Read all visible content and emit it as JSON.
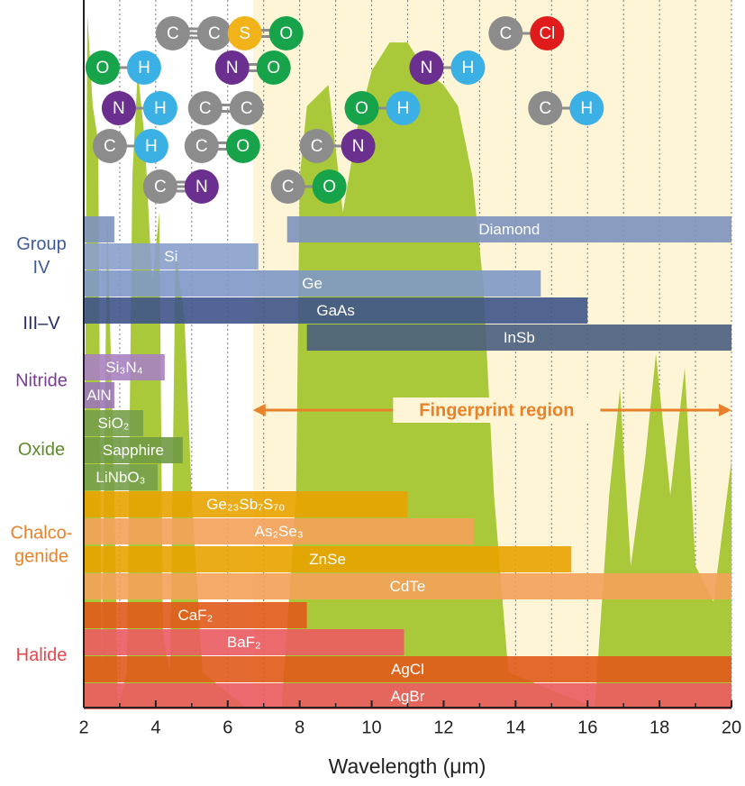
{
  "chart_data": {
    "type": "range",
    "xlabel": "Wavelength (μm)",
    "xlim": [
      2,
      20
    ],
    "xticks": [
      2,
      4,
      6,
      8,
      10,
      12,
      14,
      16,
      18,
      20
    ],
    "xminorticks": [
      3,
      5,
      7,
      9,
      11,
      13,
      15,
      17,
      19
    ],
    "ylim": [
      0,
      1
    ],
    "grid": true,
    "annotation": {
      "text": "Fingerprint region",
      "range": [
        6.7,
        20
      ],
      "color": "#e8822a",
      "background": "#fdf5d6"
    },
    "transmission": {
      "color": "#a9c93a",
      "x": [
        2.0,
        2.1,
        2.25,
        2.4,
        2.5,
        2.65,
        2.85,
        2.95,
        3.2,
        3.35,
        3.5,
        3.7,
        3.9,
        4.1,
        4.2,
        4.4,
        4.55,
        4.8,
        5.0,
        5.3,
        6.5,
        7.5,
        7.9,
        8.0,
        8.2,
        8.8,
        9.2,
        9.6,
        10.0,
        10.5,
        11.0,
        11.5,
        12.0,
        12.4,
        12.8,
        13.1,
        13.4,
        13.8,
        16.2,
        16.6,
        16.9,
        17.2,
        17.6,
        17.9,
        18.3,
        18.7,
        19.0,
        19.5,
        20.0
      ],
      "values": [
        0.1,
        0.98,
        0.85,
        0.8,
        0.05,
        0.7,
        0.3,
        0.0,
        0.05,
        0.75,
        0.9,
        0.8,
        0.6,
        0.7,
        0.1,
        0.05,
        0.65,
        0.55,
        0.3,
        0.05,
        0.0,
        0.0,
        0.3,
        0.75,
        0.85,
        0.88,
        0.7,
        0.82,
        0.9,
        0.94,
        0.94,
        0.9,
        0.88,
        0.85,
        0.75,
        0.6,
        0.3,
        0.05,
        0.0,
        0.3,
        0.45,
        0.2,
        0.35,
        0.5,
        0.3,
        0.48,
        0.2,
        0.15,
        0.35
      ]
    },
    "groups": [
      {
        "label": [
          "Group",
          "IV"
        ],
        "color": "#3d5a9c",
        "series": [
          {
            "name": "Diamond",
            "ranges": [
              [
                2,
                2.85
              ],
              [
                7.65,
                20
              ]
            ],
            "color": "#7d93bf"
          },
          {
            "name": "Si",
            "ranges": [
              [
                2,
                6.85
              ]
            ],
            "color": "#8aa0cb"
          },
          {
            "name": "Ge",
            "ranges": [
              [
                2,
                14.7
              ]
            ],
            "color": "#7f98c6"
          }
        ]
      },
      {
        "label": [
          "III–V"
        ],
        "color": "#262a66",
        "series": [
          {
            "name": "GaAs",
            "ranges": [
              [
                2,
                16.0
              ]
            ],
            "color": "#3f5488"
          },
          {
            "name": "InSb",
            "ranges": [
              [
                8.2,
                20
              ]
            ],
            "color": "#4a5e80"
          }
        ]
      },
      {
        "label": [
          "Nitride"
        ],
        "color": "#7a3d96",
        "series": [
          {
            "name": "Si₃N₄",
            "ranges": [
              [
                2,
                4.25
              ]
            ],
            "color": "#a882c2"
          },
          {
            "name": "AlN",
            "ranges": [
              [
                2,
                2.85
              ]
            ],
            "color": "#9b77b8"
          }
        ]
      },
      {
        "label": [
          "Oxide"
        ],
        "color": "#5e8a2a",
        "series": [
          {
            "name": "SiO₂",
            "ranges": [
              [
                2,
                3.65
              ]
            ],
            "color": "#76a04a"
          },
          {
            "name": "Sapphire",
            "ranges": [
              [
                2,
                4.75
              ]
            ],
            "color": "#6f9a44"
          },
          {
            "name": "LiNbO₃",
            "ranges": [
              [
                2,
                4.05
              ]
            ],
            "color": "#76a04a"
          }
        ]
      },
      {
        "label": [
          "Chalco-",
          "genide"
        ],
        "color": "#e8822a",
        "series": [
          {
            "name": "Ge₂₃Sb₇S₇₀",
            "ranges": [
              [
                2,
                11.0
              ]
            ],
            "color": "#e9a300"
          },
          {
            "name": "As₂Se₃",
            "ranges": [
              [
                2,
                12.85
              ]
            ],
            "color": "#f3a25a"
          },
          {
            "name": "ZnSe",
            "ranges": [
              [
                2,
                15.55
              ]
            ],
            "color": "#e9a300"
          },
          {
            "name": "CdTe",
            "ranges": [
              [
                2,
                20
              ]
            ],
            "color": "#f3a25a"
          }
        ]
      },
      {
        "label": [
          "Halide"
        ],
        "color": "#e2484e",
        "series": [
          {
            "name": "CaF₂",
            "ranges": [
              [
                2,
                8.2
              ]
            ],
            "color": "#e05a1a"
          },
          {
            "name": "BaF₂",
            "ranges": [
              [
                2,
                10.9
              ]
            ],
            "color": "#ea5b60"
          },
          {
            "name": "AgCl",
            "ranges": [
              [
                2,
                20
              ]
            ],
            "color": "#e05a1a"
          },
          {
            "name": "AgBr",
            "ranges": [
              [
                2,
                20
              ]
            ],
            "color": "#ea5b60"
          }
        ]
      }
    ],
    "atom_colors": {
      "C": "#8c8c8c",
      "S": "#f2b21a",
      "O": "#17a34a",
      "N": "#6b2f90",
      "H": "#3ab0e4",
      "Cl": "#e01b1b"
    },
    "molecules": [
      {
        "atoms": [
          "C",
          "C"
        ],
        "bond": 3,
        "x": 5.05
      },
      {
        "atoms": [
          "S",
          "O"
        ],
        "bond": 2,
        "x": 7.05
      },
      {
        "atoms": [
          "C",
          "Cl"
        ],
        "bond": 1,
        "x": 14.3
      },
      {
        "atoms": [
          "O",
          "H"
        ],
        "bond": 1,
        "x": 3.1
      },
      {
        "atoms": [
          "N",
          "O"
        ],
        "bond": 2,
        "x": 6.7
      },
      {
        "atoms": [
          "N",
          "H"
        ],
        "bond": 1,
        "x": 12.1
      },
      {
        "atoms": [
          "N",
          "H"
        ],
        "bond": 1,
        "x": 3.55
      },
      {
        "atoms": [
          "C",
          "C"
        ],
        "bond": 2,
        "x": 5.95
      },
      {
        "atoms": [
          "O",
          "H"
        ],
        "bond": 1,
        "x": 10.3
      },
      {
        "atoms": [
          "C",
          "H"
        ],
        "bond": 1,
        "x": 15.4
      },
      {
        "atoms": [
          "C",
          "H"
        ],
        "bond": 1,
        "x": 3.3
      },
      {
        "atoms": [
          "C",
          "O"
        ],
        "bond": 2,
        "x": 5.85
      },
      {
        "atoms": [
          "C",
          "N"
        ],
        "bond": 1,
        "x": 9.05
      },
      {
        "atoms": [
          "C",
          "N"
        ],
        "bond": 3,
        "x": 4.7
      },
      {
        "atoms": [
          "C",
          "O"
        ],
        "bond": 1,
        "x": 8.25
      }
    ]
  }
}
